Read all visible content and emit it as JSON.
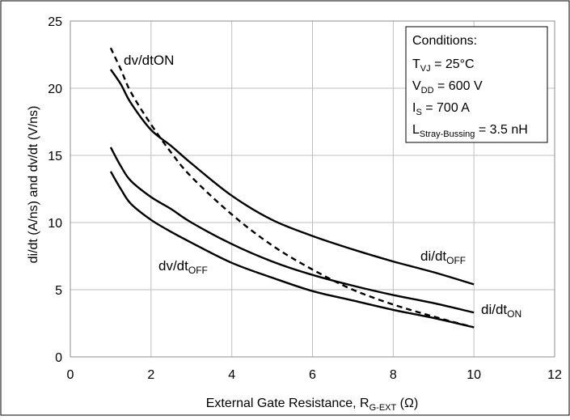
{
  "chart_data": {
    "type": "line",
    "title": "",
    "xlabel": "External Gate Resistance, R",
    "xlabel_sub": "G-EXT",
    "xlabel_suffix": " (Ω)",
    "ylabel": "di/dt (A/ns) and dv/dt (V/ns)",
    "xlim": [
      0,
      12
    ],
    "ylim": [
      0,
      25
    ],
    "xticks": [
      0,
      2,
      4,
      6,
      8,
      10,
      12
    ],
    "yticks": [
      0,
      5,
      10,
      15,
      20,
      25
    ],
    "grid": true,
    "series": [
      {
        "name": "di/dt OFF",
        "style": "solid",
        "x": [
          1,
          1.25,
          1.5,
          2,
          2.5,
          3,
          4,
          5,
          6,
          7,
          8,
          9,
          10
        ],
        "y": [
          21.4,
          20.3,
          18.9,
          16.9,
          15.7,
          14.4,
          12.0,
          10.2,
          9.0,
          8.0,
          7.1,
          6.3,
          5.4
        ]
      },
      {
        "name": "dv/dt ON",
        "style": "dashed",
        "x": [
          1,
          1.25,
          1.5,
          2,
          2.5,
          3,
          4,
          5,
          6,
          7,
          8,
          9,
          10
        ],
        "y": [
          23.0,
          21.4,
          19.7,
          17.3,
          15.2,
          13.4,
          10.6,
          8.3,
          6.5,
          5.0,
          3.9,
          3.0,
          2.2
        ]
      },
      {
        "name": "di/dt ON",
        "style": "solid",
        "x": [
          1,
          1.25,
          1.5,
          2,
          2.5,
          3,
          4,
          5,
          6,
          7,
          8,
          9,
          10
        ],
        "y": [
          15.6,
          14.2,
          13.1,
          11.9,
          11.0,
          10.0,
          8.4,
          7.1,
          6.1,
          5.3,
          4.6,
          4.0,
          3.3
        ]
      },
      {
        "name": "dv/dt OFF",
        "style": "solid",
        "x": [
          1,
          1.25,
          1.5,
          2,
          2.5,
          3,
          4,
          5,
          6,
          7,
          8,
          9,
          10
        ],
        "y": [
          13.8,
          12.5,
          11.4,
          10.2,
          9.3,
          8.5,
          7.0,
          5.9,
          4.9,
          4.2,
          3.5,
          2.9,
          2.2
        ]
      }
    ],
    "series_labels": [
      {
        "base": "di/dt",
        "sub": "OFF"
      },
      {
        "base": "dv/dtON",
        "sub": ""
      },
      {
        "base": "di/dt",
        "sub": "ON"
      },
      {
        "base": "dv/dt",
        "sub": "OFF"
      }
    ],
    "conditions": {
      "heading": "Conditions:",
      "lines": [
        {
          "base": "T",
          "sub": "VJ",
          "rest": " = 25°C"
        },
        {
          "base": "V",
          "sub": "DD",
          "rest": " = 600 V"
        },
        {
          "base": "I",
          "sub": "S",
          "rest": " = 700 A"
        },
        {
          "base": "L",
          "sub": "Stray-Bussing",
          "rest": " = 3.5 nH"
        }
      ]
    }
  }
}
